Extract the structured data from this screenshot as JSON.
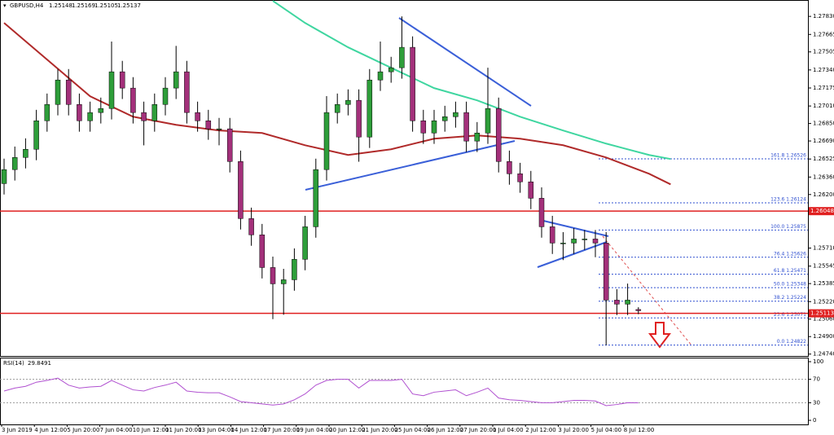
{
  "chart_data": [
    {
      "type": "candlestick",
      "title": "GBPUSD,H4",
      "open": [
        1.263,
        1.26428,
        1.26539,
        1.26614,
        1.26875,
        1.27024,
        1.27248,
        1.27024,
        1.26875,
        1.2695,
        1.26987,
        1.27323,
        1.27174,
        1.2695,
        1.26875,
        1.27024,
        1.27174,
        1.27323,
        1.2695,
        1.26875,
        1.26801,
        1.26801,
        1.26502,
        1.2598,
        1.25831,
        1.25532,
        1.25383,
        1.2542,
        1.25607,
        1.25905,
        1.26428,
        1.2695,
        1.27024,
        1.27062,
        1.26726,
        1.27248,
        1.27323,
        1.2736,
        1.27547,
        1.26875,
        1.26763,
        1.26875,
        1.26912,
        1.2695,
        1.26689,
        1.26763,
        1.26987,
        1.26502,
        1.2639,
        1.26316,
        1.26166,
        1.25905,
        1.25756,
        1.25756,
        1.25793,
        1.25793,
        1.25756,
        1.25234,
        1.25197,
        1.25148
      ],
      "high": [
        1.26528,
        1.26639,
        1.26714,
        1.26975,
        1.27124,
        1.27348,
        1.27348,
        1.27124,
        1.2705,
        1.27087,
        1.276,
        1.27423,
        1.27274,
        1.2705,
        1.27124,
        1.27274,
        1.2756,
        1.27423,
        1.2705,
        1.26975,
        1.26901,
        1.26901,
        1.26602,
        1.2608,
        1.25931,
        1.25632,
        1.2552,
        1.25707,
        1.26005,
        1.26528,
        1.271,
        1.27124,
        1.27162,
        1.27162,
        1.27348,
        1.276,
        1.2746,
        1.2783,
        1.27647,
        1.26975,
        1.26975,
        1.27012,
        1.2705,
        1.2705,
        1.26863,
        1.2736,
        1.27087,
        1.26602,
        1.2649,
        1.26416,
        1.26266,
        1.26005,
        1.25856,
        1.25893,
        1.25875,
        1.25875,
        1.25856,
        1.25334,
        1.25385,
        1.25169
      ],
      "low": [
        1.262,
        1.26328,
        1.26439,
        1.26514,
        1.26775,
        1.26924,
        1.26924,
        1.26775,
        1.26775,
        1.2685,
        1.26887,
        1.27074,
        1.2685,
        1.2665,
        1.26775,
        1.26924,
        1.27074,
        1.2685,
        1.26775,
        1.26701,
        1.2665,
        1.26402,
        1.2588,
        1.25731,
        1.25432,
        1.2506,
        1.251,
        1.2532,
        1.25507,
        1.25805,
        1.26328,
        1.2685,
        1.26924,
        1.265,
        1.26626,
        1.27148,
        1.27223,
        1.2726,
        1.26775,
        1.26663,
        1.26663,
        1.26775,
        1.26812,
        1.26589,
        1.26589,
        1.26663,
        1.26402,
        1.2629,
        1.26216,
        1.26066,
        1.25805,
        1.25656,
        1.256,
        1.25656,
        1.25693,
        1.25626,
        1.24822,
        1.25097,
        1.25097,
        1.25105
      ],
      "close": [
        1.26428,
        1.26539,
        1.26614,
        1.26875,
        1.27024,
        1.27248,
        1.27024,
        1.26875,
        1.2695,
        1.26987,
        1.27323,
        1.27174,
        1.2695,
        1.26875,
        1.27024,
        1.27174,
        1.27323,
        1.2695,
        1.26875,
        1.26801,
        1.26801,
        1.26502,
        1.2598,
        1.25831,
        1.25532,
        1.25383,
        1.2542,
        1.25607,
        1.25905,
        1.26428,
        1.2695,
        1.27024,
        1.27062,
        1.26726,
        1.27248,
        1.27323,
        1.2736,
        1.27547,
        1.26875,
        1.26763,
        1.26875,
        1.26912,
        1.2695,
        1.26689,
        1.26763,
        1.26987,
        1.26502,
        1.2639,
        1.26316,
        1.26166,
        1.25905,
        1.25756,
        1.25756,
        1.25793,
        1.25793,
        1.25756,
        1.25234,
        1.25197,
        1.25234,
        1.25137
      ],
      "bull_color": "#2e9e3a",
      "bear_color": "#a3307a",
      "moving_averages": [
        {
          "color": "#b02a2a",
          "x": [
            0,
            4,
            8,
            12,
            16,
            20,
            24,
            28,
            32,
            36,
            40,
            44,
            48,
            52,
            56,
            60,
            62
          ],
          "values": [
            1.2777,
            1.27435,
            1.27099,
            1.26912,
            1.26838,
            1.26786,
            1.26763,
            1.26651,
            1.26562,
            1.26614,
            1.26711,
            1.26741,
            1.26711,
            1.26651,
            1.26539,
            1.2639,
            1.26293
          ]
        },
        {
          "color": "#3fd6a0",
          "x": [
            25,
            28,
            32,
            36,
            40,
            44,
            48,
            52,
            56,
            60,
            62
          ],
          "values": [
            1.27972,
            1.2777,
            1.27547,
            1.2736,
            1.27174,
            1.27062,
            1.26912,
            1.26786,
            1.26666,
            1.26562,
            1.26525
          ]
        }
      ],
      "hlines": [
        {
          "value": 1.26048,
          "label": "1.26048"
        },
        {
          "value": 1.25113,
          "label": "1.25113"
        }
      ],
      "hline_color": "#e02020",
      "fib_levels": [
        {
          "value": 1.26526,
          "label": "161.8 1.26526"
        },
        {
          "value": 1.26124,
          "label": "123.6 1.26124"
        },
        {
          "value": 1.25875,
          "label": "100.0 1.25875"
        },
        {
          "value": 1.25626,
          "label": "76.4 1.25626"
        },
        {
          "value": 1.25471,
          "label": "61.8 1.25471"
        },
        {
          "value": 1.25348,
          "label": "50.0 1.25348"
        },
        {
          "value": 1.25224,
          "label": "38.2 1.25224"
        },
        {
          "value": 1.25071,
          "label": "23.6 1.25071"
        },
        {
          "value": 1.24822,
          "label": "0.0 1.24822"
        }
      ],
      "fib_color": "#3050d0",
      "ylim": [
        1.2473,
        1.2798
      ],
      "yticks": [
        {
          "value": 1.2783,
          "label": "1.27830"
        },
        {
          "value": 1.27665,
          "label": "1.27665"
        },
        {
          "value": 1.27505,
          "label": "1.27505"
        },
        {
          "value": 1.2734,
          "label": "1.27340"
        },
        {
          "value": 1.27175,
          "label": "1.27175"
        },
        {
          "value": 1.2701,
          "label": "1.27010"
        },
        {
          "value": 1.2685,
          "label": "1.26850"
        },
        {
          "value": 1.2669,
          "label": "1.26690"
        },
        {
          "value": 1.26525,
          "label": "1.26525"
        },
        {
          "value": 1.2636,
          "label": "1.26360"
        },
        {
          "value": 1.262,
          "label": "1.26200"
        },
        {
          "value": 1.2571,
          "label": "1.25710"
        },
        {
          "value": 1.25545,
          "label": "1.25545"
        },
        {
          "value": 1.25385,
          "label": "1.25385"
        },
        {
          "value": 1.2522,
          "label": "1.25220"
        },
        {
          "value": 1.2506,
          "label": "1.25060"
        },
        {
          "value": 1.249,
          "label": "1.24900"
        },
        {
          "value": 1.2474,
          "label": "1.24740"
        }
      ],
      "time_labels": [
        "3 Jun 2019",
        "4 Jun 12:00",
        "5 Jun 20:00",
        "7 Jun 04:00",
        "10 Jun 12:00",
        "11 Jun 20:00",
        "13 Jun 04:00",
        "14 Jun 12:00",
        "17 Jun 20:00",
        "19 Jun 04:00",
        "20 Jun 12:00",
        "21 Jun 20:00",
        "25 Jun 04:00",
        "26 Jun 12:00",
        "27 Jun 20:00",
        "1 Jul 04:00",
        "2 Jul 12:00",
        "3 Jul 20:00",
        "5 Jul 04:00",
        "8 Jul 12:00"
      ]
    },
    {
      "type": "line",
      "title": "RSI(14)",
      "color": "#b050d0",
      "values": [
        50,
        55,
        58,
        65,
        68,
        72,
        60,
        55,
        57,
        58,
        68,
        60,
        52,
        50,
        56,
        60,
        65,
        50,
        48,
        47,
        47,
        40,
        32,
        30,
        28,
        26,
        28,
        35,
        45,
        60,
        68,
        70,
        70,
        55,
        68,
        68,
        68,
        70,
        45,
        42,
        48,
        50,
        52,
        42,
        48,
        55,
        38,
        35,
        34,
        32,
        30,
        30,
        32,
        34,
        34,
        33,
        25,
        27,
        30,
        29.8491
      ],
      "ylim": [
        0,
        100
      ],
      "yticks": [
        100,
        70,
        30,
        0
      ],
      "levels": [
        70,
        30
      ]
    }
  ]
}
